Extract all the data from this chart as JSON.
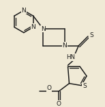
{
  "bg_color": "#f0ead6",
  "line_color": "#1a1a1a",
  "line_width": 1.1,
  "figsize": [
    1.54,
    1.56
  ],
  "dpi": 100,
  "xlim": [
    0,
    154
  ],
  "ylim": [
    156,
    0
  ]
}
